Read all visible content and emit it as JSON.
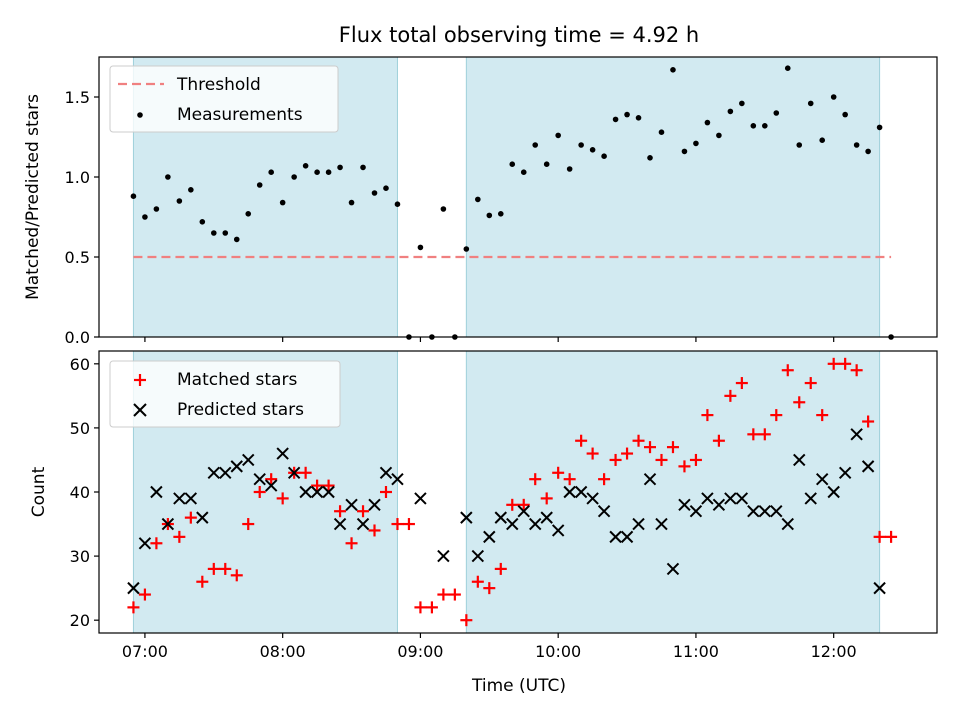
{
  "chart_data": [
    {
      "type": "scatter",
      "title": "Flux total observing time = 4.92 h",
      "ylabel": "Matched/Predicted stars",
      "ylim": [
        0,
        1.75
      ],
      "yticks": [
        "0.0",
        "0.5",
        "1.0",
        "1.5"
      ],
      "legend": {
        "placement": "top-left",
        "entries": [
          "Threshold",
          "Measurements"
        ]
      },
      "threshold": {
        "name": "Threshold",
        "value": 0.5,
        "x_start": "06:55",
        "x_end": "12:25",
        "color": "#f08080"
      },
      "shaded_intervals": [
        [
          "06:55",
          "08:50"
        ],
        [
          "09:20",
          "12:20"
        ]
      ],
      "shade_color": "#add8e6",
      "series": [
        {
          "name": "Measurements",
          "color": "#000000",
          "x": [
            "06:55",
            "07:00",
            "07:05",
            "07:10",
            "07:15",
            "07:20",
            "07:25",
            "07:30",
            "07:35",
            "07:40",
            "07:45",
            "07:50",
            "07:55",
            "08:00",
            "08:05",
            "08:10",
            "08:15",
            "08:20",
            "08:25",
            "08:30",
            "08:35",
            "08:40",
            "08:45",
            "08:50",
            "08:55",
            "09:00",
            "09:05",
            "09:10",
            "09:15",
            "09:20",
            "09:25",
            "09:30",
            "09:35",
            "09:40",
            "09:45",
            "09:50",
            "09:55",
            "10:00",
            "10:05",
            "10:10",
            "10:15",
            "10:20",
            "10:25",
            "10:30",
            "10:35",
            "10:40",
            "10:45",
            "10:50",
            "10:55",
            "11:00",
            "11:05",
            "11:10",
            "11:15",
            "11:20",
            "11:25",
            "11:30",
            "11:35",
            "11:40",
            "11:45",
            "11:50",
            "11:55",
            "12:00",
            "12:05",
            "12:10",
            "12:15",
            "12:20",
            "12:25"
          ],
          "values": [
            0.88,
            0.75,
            0.8,
            1.0,
            0.85,
            0.92,
            0.72,
            0.65,
            0.65,
            0.61,
            0.77,
            0.95,
            1.03,
            0.84,
            1.0,
            1.07,
            1.03,
            1.03,
            1.06,
            0.84,
            1.06,
            0.9,
            0.93,
            0.83,
            0.0,
            0.56,
            0.0,
            0.8,
            0.0,
            0.55,
            0.86,
            0.76,
            0.77,
            1.08,
            1.03,
            1.2,
            1.08,
            1.26,
            1.05,
            1.2,
            1.17,
            1.13,
            1.36,
            1.39,
            1.37,
            1.12,
            1.28,
            1.67,
            1.16,
            1.21,
            1.34,
            1.26,
            1.41,
            1.46,
            1.32,
            1.32,
            1.4,
            1.68,
            1.2,
            1.46,
            1.23,
            1.5,
            1.39,
            1.2,
            1.16,
            1.31,
            0.0
          ]
        }
      ]
    },
    {
      "type": "scatter",
      "xlabel": "Time (UTC)",
      "ylabel": "Count",
      "ylim": [
        18,
        62
      ],
      "yticks": [
        "20",
        "30",
        "40",
        "50",
        "60"
      ],
      "xlim": [
        "06:40",
        "12:45"
      ],
      "xticks": [
        "07:00",
        "08:00",
        "09:00",
        "10:00",
        "11:00",
        "12:00"
      ],
      "legend": {
        "placement": "top-left",
        "entries": [
          "Matched stars",
          "Predicted stars"
        ]
      },
      "shaded_intervals": [
        [
          "06:55",
          "08:50"
        ],
        [
          "09:20",
          "12:20"
        ]
      ],
      "series": [
        {
          "name": "Matched stars",
          "marker": "+",
          "color": "#ff0000",
          "x": [
            "06:55",
            "07:00",
            "07:05",
            "07:10",
            "07:15",
            "07:20",
            "07:25",
            "07:30",
            "07:35",
            "07:40",
            "07:45",
            "07:50",
            "07:55",
            "08:00",
            "08:05",
            "08:10",
            "08:15",
            "08:20",
            "08:25",
            "08:30",
            "08:35",
            "08:40",
            "08:45",
            "08:50",
            "08:55",
            "09:00",
            "09:05",
            "09:10",
            "09:15",
            "09:20",
            "09:25",
            "09:30",
            "09:35",
            "09:40",
            "09:45",
            "09:50",
            "09:55",
            "10:00",
            "10:05",
            "10:10",
            "10:15",
            "10:20",
            "10:25",
            "10:30",
            "10:35",
            "10:40",
            "10:45",
            "10:50",
            "10:55",
            "11:00",
            "11:05",
            "11:10",
            "11:15",
            "11:20",
            "11:25",
            "11:30",
            "11:35",
            "11:40",
            "11:45",
            "11:50",
            "11:55",
            "12:00",
            "12:05",
            "12:10",
            "12:15",
            "12:20",
            "12:25"
          ],
          "values": [
            22,
            24,
            32,
            35,
            33,
            36,
            26,
            28,
            28,
            27,
            35,
            40,
            42,
            39,
            43,
            43,
            41,
            41,
            37,
            32,
            37,
            34,
            40,
            35,
            35,
            22,
            22,
            24,
            24,
            20,
            26,
            25,
            28,
            38,
            38,
            42,
            39,
            43,
            42,
            48,
            46,
            42,
            45,
            46,
            48,
            47,
            45,
            47,
            44,
            45,
            52,
            48,
            55,
            57,
            49,
            49,
            52,
            59,
            54,
            57,
            52,
            60,
            60,
            59,
            51,
            33,
            33
          ]
        },
        {
          "name": "Predicted stars",
          "marker": "x",
          "color": "#000000",
          "x": [
            "06:55",
            "07:00",
            "07:05",
            "07:10",
            "07:15",
            "07:20",
            "07:25",
            "07:30",
            "07:35",
            "07:40",
            "07:45",
            "07:50",
            "07:55",
            "08:00",
            "08:05",
            "08:10",
            "08:15",
            "08:20",
            "08:25",
            "08:30",
            "08:35",
            "08:40",
            "08:45",
            "08:50",
            "09:00",
            "09:10",
            "09:20",
            "09:25",
            "09:30",
            "09:35",
            "09:40",
            "09:45",
            "09:50",
            "09:55",
            "10:00",
            "10:05",
            "10:10",
            "10:15",
            "10:20",
            "10:25",
            "10:30",
            "10:35",
            "10:40",
            "10:45",
            "10:50",
            "10:55",
            "11:00",
            "11:05",
            "11:10",
            "11:15",
            "11:20",
            "11:25",
            "11:30",
            "11:35",
            "11:40",
            "11:45",
            "11:50",
            "11:55",
            "12:00",
            "12:05",
            "12:10",
            "12:15",
            "12:20"
          ],
          "values": [
            25,
            32,
            40,
            35,
            39,
            39,
            36,
            43,
            43,
            44,
            45,
            42,
            41,
            46,
            43,
            40,
            40,
            40,
            35,
            38,
            35,
            38,
            43,
            42,
            39,
            30,
            36,
            30,
            33,
            36,
            35,
            37,
            35,
            36,
            34,
            40,
            40,
            39,
            37,
            33,
            33,
            35,
            42,
            35,
            28,
            38,
            37,
            39,
            38,
            39,
            39,
            37,
            37,
            37,
            35,
            45,
            39,
            42,
            40,
            43,
            49,
            44,
            25
          ]
        }
      ]
    }
  ]
}
